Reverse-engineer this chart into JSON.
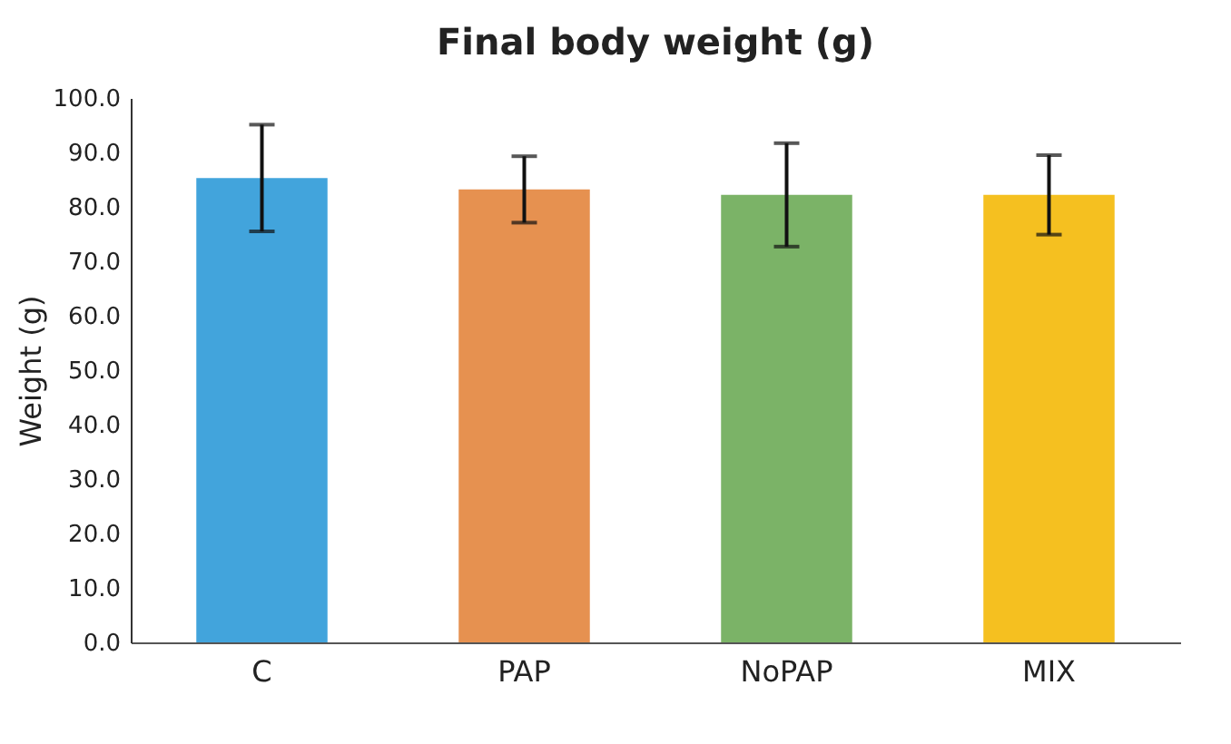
{
  "chart_data": {
    "type": "bar",
    "title": "Final body weight (g)",
    "ylabel": "Weight (g)",
    "categories": [
      "C",
      "PAP",
      "NoPAP",
      "MIX"
    ],
    "values": [
      85.3,
      83.2,
      82.2,
      82.2
    ],
    "errors": [
      9.8,
      6.1,
      9.5,
      7.3
    ],
    "colors": [
      "#42a4dc",
      "#e69150",
      "#7bb367",
      "#f5c020"
    ],
    "ylim": [
      0,
      100
    ],
    "yticks": [
      {
        "value": 0,
        "label": "0.0"
      },
      {
        "value": 10,
        "label": "10.0"
      },
      {
        "value": 20,
        "label": "20.0"
      },
      {
        "value": 30,
        "label": "30.0"
      },
      {
        "value": 40,
        "label": "40.0"
      },
      {
        "value": 50,
        "label": "50.0"
      },
      {
        "value": 60,
        "label": "60.0"
      },
      {
        "value": 70,
        "label": "70.0"
      },
      {
        "value": 80,
        "label": "80.0"
      },
      {
        "value": 90,
        "label": "90.0"
      },
      {
        "value": 100,
        "label": "100.0"
      }
    ],
    "grid": false,
    "legend": false
  }
}
